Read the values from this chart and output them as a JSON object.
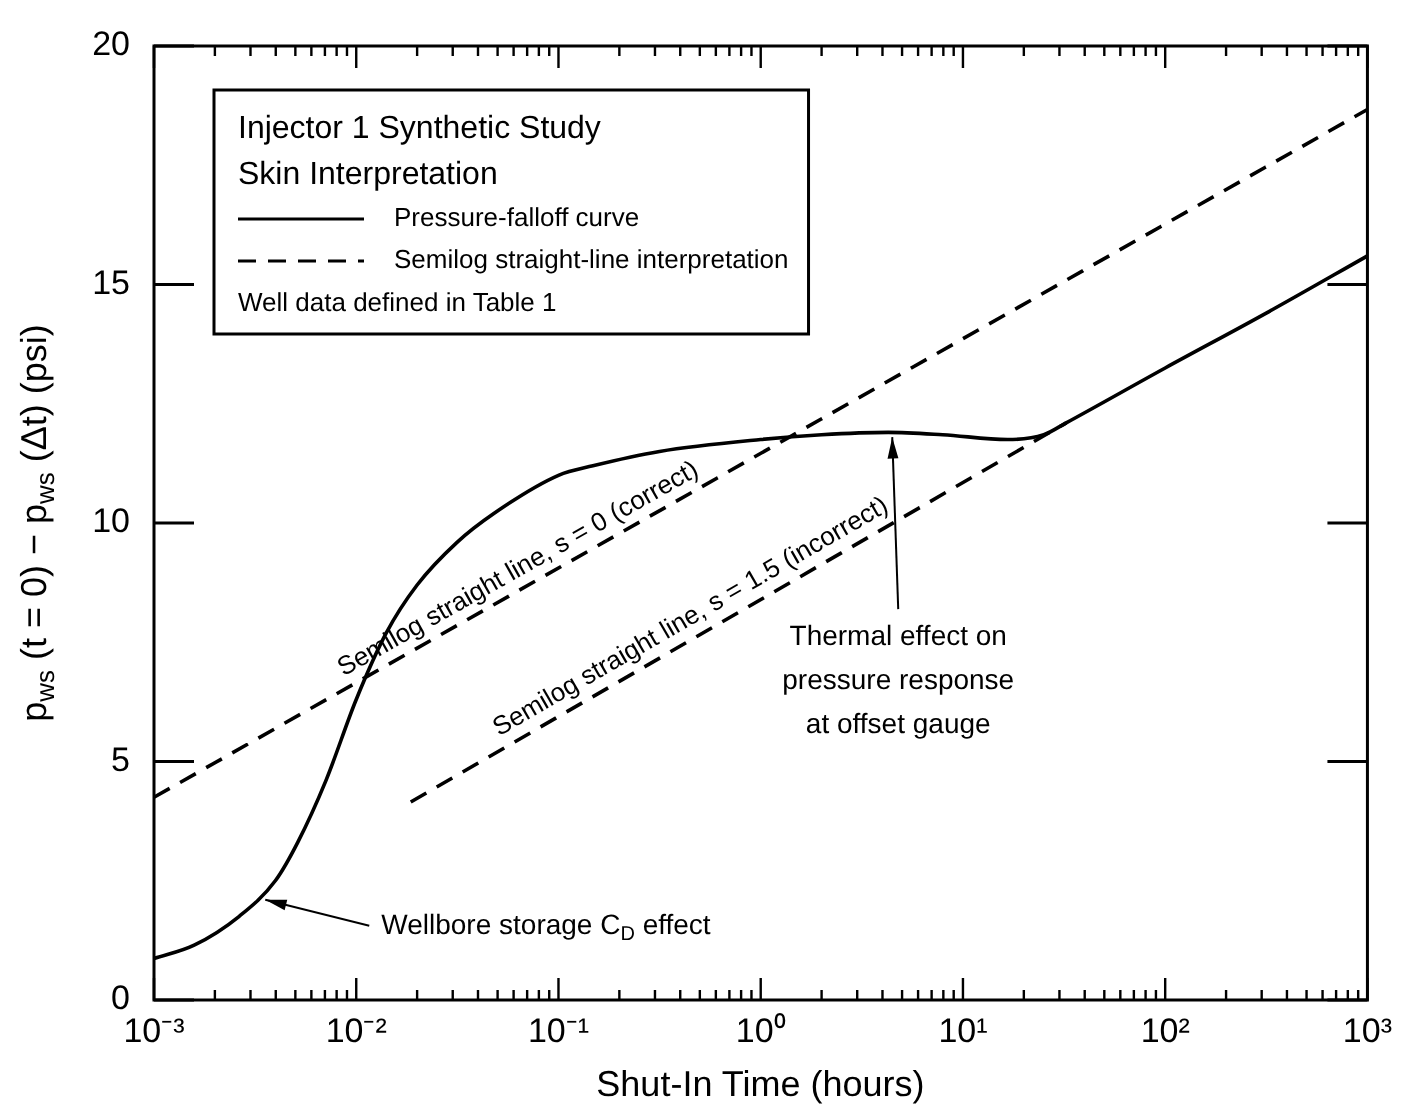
{
  "chart_data": {
    "type": "line",
    "xlabel": "Shut-In Time (hours)",
    "ylabel": "p$_{ws}$ (t = 0) − p$_{ws}$ (Δt) (psi)",
    "legend_title": "Injector 1 Synthetic Study\nSkin Interpretation",
    "log": "x",
    "grid": false,
    "legend": "top left",
    "marker": "none",
    "xlim": [
      0.001,
      1000
    ],
    "ylim": [
      0,
      20
    ],
    "yticks": [
      0,
      5,
      10,
      15,
      20
    ],
    "xticks": [
      {
        "value": 0.001,
        "label": "10⁻³"
      },
      {
        "value": 0.002,
        "label": null
      },
      {
        "value": 0.003,
        "label": null
      },
      {
        "value": 0.004,
        "label": null
      },
      {
        "value": 0.005,
        "label": null
      },
      {
        "value": 0.006,
        "label": null
      },
      {
        "value": 0.007,
        "label": null
      },
      {
        "value": 0.008,
        "label": null
      },
      {
        "value": 0.009,
        "label": null
      },
      {
        "value": 0.01,
        "label": "10⁻²"
      },
      {
        "value": 0.02,
        "label": null
      },
      {
        "value": 0.03,
        "label": null
      },
      {
        "value": 0.04,
        "label": null
      },
      {
        "value": 0.05,
        "label": null
      },
      {
        "value": 0.06,
        "label": null
      },
      {
        "value": 0.07,
        "label": null
      },
      {
        "value": 0.08,
        "label": null
      },
      {
        "value": 0.09,
        "label": null
      },
      {
        "value": 0.1,
        "label": "10⁻¹"
      },
      {
        "value": 0.2,
        "label": null
      },
      {
        "value": 0.3,
        "label": null
      },
      {
        "value": 0.4,
        "label": null
      },
      {
        "value": 0.5,
        "label": null
      },
      {
        "value": 0.6,
        "label": null
      },
      {
        "value": 0.7,
        "label": null
      },
      {
        "value": 0.8,
        "label": null
      },
      {
        "value": 0.9,
        "label": null
      },
      {
        "value": 1,
        "label": "10⁰"
      },
      {
        "value": 2,
        "label": null
      },
      {
        "value": 3,
        "label": null
      },
      {
        "value": 4,
        "label": null
      },
      {
        "value": 5,
        "label": null
      },
      {
        "value": 6,
        "label": null
      },
      {
        "value": 7,
        "label": null
      },
      {
        "value": 8,
        "label": null
      },
      {
        "value": 9,
        "label": null
      },
      {
        "value": 10,
        "label": "10¹"
      },
      {
        "value": 20,
        "label": null
      },
      {
        "value": 30,
        "label": null
      },
      {
        "value": 40,
        "label": null
      },
      {
        "value": 50,
        "label": null
      },
      {
        "value": 60,
        "label": null
      },
      {
        "value": 70,
        "label": null
      },
      {
        "value": 80,
        "label": null
      },
      {
        "value": 90,
        "label": null
      },
      {
        "value": 100,
        "label": "10²"
      },
      {
        "value": 200,
        "label": null
      },
      {
        "value": 300,
        "label": null
      },
      {
        "value": 400,
        "label": null
      },
      {
        "value": 500,
        "label": null
      },
      {
        "value": 600,
        "label": null
      },
      {
        "value": 700,
        "label": null
      },
      {
        "value": 800,
        "label": null
      },
      {
        "value": 900,
        "label": null
      },
      {
        "value": 1000,
        "label": "10³"
      }
    ],
    "series": [
      {
        "name": "Pressure-falloff curve",
        "color": "#000000",
        "line_style": "solid",
        "x": [
          0.001,
          0.00158,
          0.00263,
          0.00398,
          0.00513,
          0.00708,
          0.01,
          0.0141,
          0.02,
          0.0316,
          0.0479,
          0.1,
          0.148,
          0.316,
          1,
          2,
          4.27,
          7.94,
          16.6,
          25.1,
          32.4,
          100,
          316,
          1000
        ],
        "values": [
          0.87,
          1.15,
          1.75,
          2.5,
          3.3,
          4.6,
          6.3,
          7.7,
          8.7,
          9.6,
          10.2,
          11.0,
          11.2,
          11.5,
          11.75,
          11.85,
          11.9,
          11.85,
          11.75,
          11.85,
          12.1,
          13.25,
          14.4,
          15.6
        ]
      },
      {
        "name": "Semilog straight-line interpretation",
        "color": "#000000",
        "line_style": "dashed",
        "x": [
          0.001,
          1000
        ],
        "values": [
          4.25,
          18.67
        ]
      },
      {
        "color": "#000000",
        "line_style": "dashed",
        "x": [
          0.0186,
          32.4
        ],
        "values": [
          4.15,
          12.1
        ]
      }
    ],
    "annotations": [
      "Well data defined in Table 1",
      {
        "text": "Semilog straight line, s = 0 (correct)",
        "x": 0.07,
        "y": 8.7
      },
      {
        "text": "Semilog straight line, s = 1.5 (incorrect)",
        "x": 0.5,
        "y": 7.7
      },
      {
        "text": "Thermal effect on\npressure response\nat offset gauge",
        "x": 4.47,
        "y": 11.8
      },
      {
        "text": "Wellbore storage C$_{D}$ effect",
        "x": 0.00355,
        "y": 2.1
      }
    ]
  }
}
